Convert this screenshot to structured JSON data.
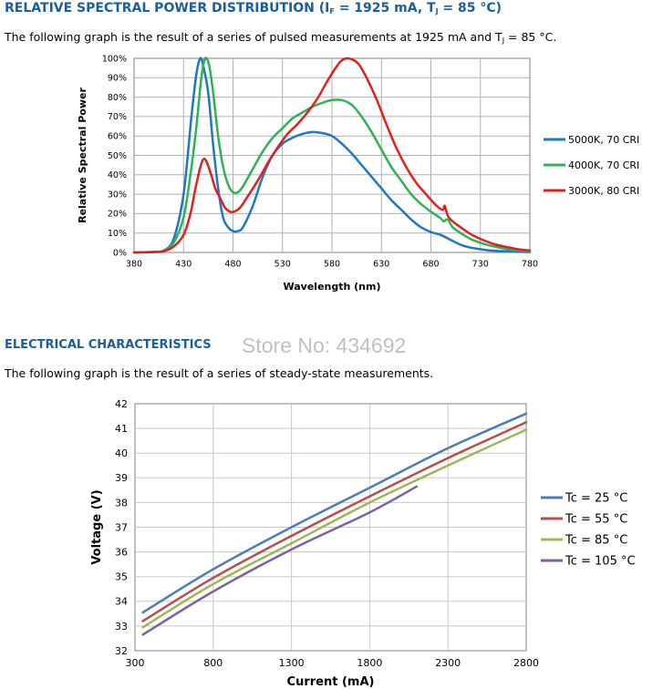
{
  "section1": {
    "title_parts": [
      "RELATIVE SPECTRAL POWER DISTRIBUTION (I",
      "F",
      " = 1925 mA, T",
      "J",
      " = 85 °C)"
    ],
    "desc_parts": [
      "The following graph is the result of a series of pulsed measurements at 1925 mA and T",
      "J",
      " = 85 °C."
    ]
  },
  "section2": {
    "title": "ELECTRICAL CHARACTERISTICS",
    "watermark": "Store No: 434692",
    "desc": "The following graph is the result of a series of steady-state measurements."
  },
  "chart_data": [
    {
      "type": "line",
      "title": "",
      "xlabel": "Wavelength (nm)",
      "ylabel": "Relative Spectral Power",
      "xlim": [
        380,
        780
      ],
      "ylim": [
        0,
        100
      ],
      "x_ticks": [
        "380",
        "430",
        "480",
        "530",
        "580",
        "630",
        "680",
        "730",
        "780"
      ],
      "y_ticks": [
        "0%",
        "10%",
        "20%",
        "30%",
        "40%",
        "50%",
        "60%",
        "70%",
        "80%",
        "90%",
        "100%"
      ],
      "grid": true,
      "legend_position": "right",
      "series": [
        {
          "name": "5000K, 70 CRI",
          "color": "#1f77c4",
          "points": [
            [
              380,
              0
            ],
            [
              400,
              0.3
            ],
            [
              410,
              1
            ],
            [
              420,
              7
            ],
            [
              430,
              30
            ],
            [
              438,
              70
            ],
            [
              443,
              92
            ],
            [
              447,
              100
            ],
            [
              450,
              96
            ],
            [
              455,
              82
            ],
            [
              460,
              55
            ],
            [
              465,
              33
            ],
            [
              470,
              18
            ],
            [
              475,
              13
            ],
            [
              480,
              11
            ],
            [
              485,
              11
            ],
            [
              490,
              13
            ],
            [
              500,
              24
            ],
            [
              510,
              39
            ],
            [
              520,
              50
            ],
            [
              530,
              56
            ],
            [
              540,
              59
            ],
            [
              550,
              61
            ],
            [
              560,
              62
            ],
            [
              570,
              61.5
            ],
            [
              580,
              60
            ],
            [
              590,
              56
            ],
            [
              600,
              51
            ],
            [
              610,
              45
            ],
            [
              620,
              39
            ],
            [
              630,
              33
            ],
            [
              640,
              27
            ],
            [
              650,
              22
            ],
            [
              660,
              17
            ],
            [
              670,
              13
            ],
            [
              680,
              10.5
            ],
            [
              690,
              9
            ],
            [
              700,
              6.5
            ],
            [
              710,
              4
            ],
            [
              720,
              2.5
            ],
            [
              730,
              1.7
            ],
            [
              740,
              1
            ],
            [
              760,
              0.5
            ],
            [
              780,
              0.2
            ]
          ]
        },
        {
          "name": "4000K, 70 CRI",
          "color": "#2fb257",
          "points": [
            [
              380,
              0
            ],
            [
              400,
              0.3
            ],
            [
              410,
              1
            ],
            [
              420,
              5
            ],
            [
              430,
              18
            ],
            [
              437,
              40
            ],
            [
              443,
              65
            ],
            [
              448,
              90
            ],
            [
              452,
              100
            ],
            [
              456,
              96
            ],
            [
              460,
              82
            ],
            [
              465,
              60
            ],
            [
              470,
              44
            ],
            [
              475,
              35
            ],
            [
              480,
              31
            ],
            [
              485,
              31
            ],
            [
              490,
              34
            ],
            [
              500,
              43
            ],
            [
              510,
              52
            ],
            [
              520,
              59
            ],
            [
              530,
              64
            ],
            [
              540,
              69
            ],
            [
              550,
              72
            ],
            [
              560,
              75
            ],
            [
              570,
              77
            ],
            [
              580,
              78.5
            ],
            [
              590,
              78.5
            ],
            [
              600,
              76
            ],
            [
              610,
              70
            ],
            [
              620,
              62
            ],
            [
              630,
              53
            ],
            [
              640,
              44
            ],
            [
              650,
              37
            ],
            [
              660,
              30
            ],
            [
              670,
              25
            ],
            [
              680,
              21
            ],
            [
              690,
              17.5
            ],
            [
              693,
              16
            ],
            [
              697,
              17
            ],
            [
              702,
              13
            ],
            [
              710,
              10
            ],
            [
              720,
              7
            ],
            [
              730,
              5
            ],
            [
              740,
              3.5
            ],
            [
              760,
              1.5
            ],
            [
              780,
              0.5
            ]
          ]
        },
        {
          "name": "3000K, 80 CRI",
          "color": "#e02020",
          "points": [
            [
              380,
              0
            ],
            [
              400,
              0.2
            ],
            [
              410,
              0.6
            ],
            [
              420,
              3
            ],
            [
              430,
              9
            ],
            [
              437,
              20
            ],
            [
              442,
              33
            ],
            [
              447,
              44
            ],
            [
              450,
              48
            ],
            [
              453,
              47
            ],
            [
              458,
              40
            ],
            [
              462,
              33
            ],
            [
              467,
              28
            ],
            [
              472,
              23
            ],
            [
              477,
              21
            ],
            [
              481,
              21
            ],
            [
              487,
              23
            ],
            [
              495,
              29
            ],
            [
              505,
              37
            ],
            [
              515,
              46
            ],
            [
              525,
              54
            ],
            [
              535,
              61
            ],
            [
              545,
              66
            ],
            [
              555,
              72
            ],
            [
              565,
              79
            ],
            [
              575,
              88
            ],
            [
              585,
              96
            ],
            [
              590,
              99
            ],
            [
              595,
              100
            ],
            [
              600,
              99.5
            ],
            [
              607,
              97
            ],
            [
              615,
              90
            ],
            [
              625,
              79
            ],
            [
              635,
              66
            ],
            [
              645,
              54
            ],
            [
              655,
              44
            ],
            [
              665,
              36
            ],
            [
              675,
              30
            ],
            [
              682,
              26
            ],
            [
              687,
              23.5
            ],
            [
              692,
              22
            ],
            [
              694,
              24
            ],
            [
              697,
              19
            ],
            [
              702,
              16
            ],
            [
              710,
              13
            ],
            [
              720,
              9.5
            ],
            [
              730,
              7
            ],
            [
              740,
              5
            ],
            [
              750,
              3.5
            ],
            [
              760,
              2.5
            ],
            [
              770,
              1.5
            ],
            [
              780,
              1
            ]
          ]
        }
      ]
    },
    {
      "type": "line",
      "title": "",
      "xlabel": "Current (mA)",
      "ylabel": "Voltage (V)",
      "xlim": [
        300,
        2800
      ],
      "ylim": [
        32,
        42
      ],
      "x_ticks": [
        "300",
        "800",
        "1300",
        "1800",
        "2300",
        "2800"
      ],
      "y_ticks": [
        "32",
        "33",
        "34",
        "35",
        "36",
        "37",
        "38",
        "39",
        "40",
        "41",
        "42"
      ],
      "grid": true,
      "legend_position": "right",
      "series": [
        {
          "name": "Tc = 25 °C",
          "color": "#4a7ebb",
          "points": [
            [
              350,
              33.55
            ],
            [
              800,
              35.3
            ],
            [
              1300,
              37.0
            ],
            [
              1800,
              38.6
            ],
            [
              2300,
              40.2
            ],
            [
              2800,
              41.6
            ]
          ]
        },
        {
          "name": "Tc = 55 °C",
          "color": "#be4b48",
          "points": [
            [
              350,
              33.2
            ],
            [
              800,
              34.95
            ],
            [
              1300,
              36.65
            ],
            [
              1800,
              38.25
            ],
            [
              2300,
              39.8
            ],
            [
              2800,
              41.25
            ]
          ]
        },
        {
          "name": "Tc = 85 °C",
          "color": "#98b954",
          "points": [
            [
              350,
              32.95
            ],
            [
              800,
              34.7
            ],
            [
              1300,
              36.35
            ],
            [
              1800,
              38.0
            ],
            [
              2300,
              39.5
            ],
            [
              2800,
              40.95
            ]
          ]
        },
        {
          "name": "Tc = 105 °C",
          "color": "#7d60a0",
          "points": [
            [
              350,
              32.65
            ],
            [
              800,
              34.4
            ],
            [
              1300,
              36.1
            ],
            [
              1800,
              37.6
            ],
            [
              2100,
              38.65
            ]
          ]
        }
      ]
    }
  ]
}
